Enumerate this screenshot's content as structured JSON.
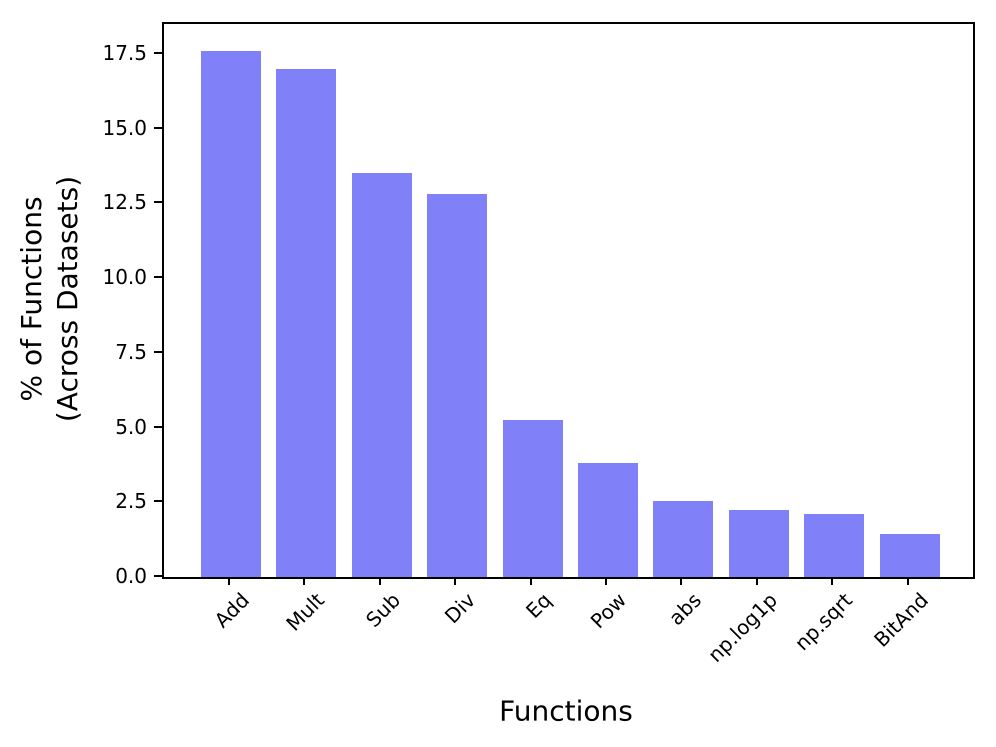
{
  "figure": {
    "xlabel": "Functions",
    "ylabel_line1": "% of Functions",
    "ylabel_line2": "(Across Datasets)"
  },
  "chart_data": {
    "type": "bar",
    "categories": [
      "Add",
      "Mult",
      "Sub",
      "Div",
      "Eq",
      "Pow",
      "abs",
      "np.log1p",
      "np.sqrt",
      "BitAnd"
    ],
    "values": [
      17.6,
      17.0,
      13.5,
      12.8,
      5.25,
      3.8,
      2.55,
      2.25,
      2.1,
      1.45
    ],
    "title": "",
    "xlabel": "Functions",
    "ylabel": "% of Functions (Across Datasets)",
    "ytick_labels": [
      "0.0",
      "2.5",
      "5.0",
      "7.5",
      "10.0",
      "12.5",
      "15.0",
      "17.5"
    ],
    "ytick_values": [
      0,
      2.5,
      5,
      7.5,
      10,
      12.5,
      15,
      17.5
    ],
    "ylim": [
      0,
      18.5
    ],
    "bar_color": "#8080f8",
    "axis_color": "#000000",
    "grid": false,
    "legend_position": "none"
  }
}
